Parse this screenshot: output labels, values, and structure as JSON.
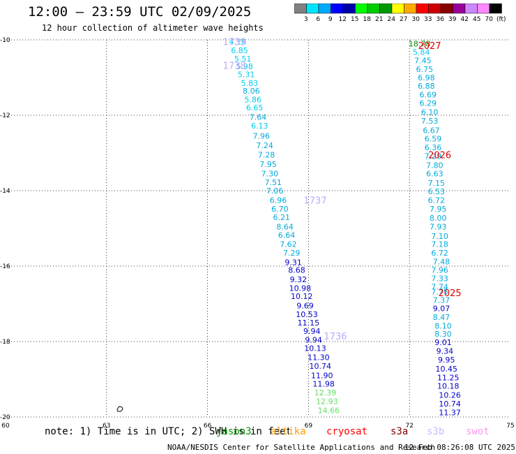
{
  "header": {
    "title": "12:00 – 23:59 UTC 02/09/2025",
    "subtitle": "12 hour collection of altimeter wave heights"
  },
  "colorbar": {
    "labels": [
      "3",
      "6",
      "9",
      "12",
      "15",
      "18",
      "21",
      "24",
      "27",
      "30",
      "33",
      "36",
      "39",
      "42",
      "45",
      "70",
      "(ft)"
    ],
    "colors": [
      "#808080",
      "#00e5ff",
      "#00aaff",
      "#0000ff",
      "#0000aa",
      "#00ff00",
      "#00cc00",
      "#009900",
      "#ffff00",
      "#ffaa00",
      "#ff0000",
      "#cc0000",
      "#880000",
      "#990099",
      "#cc88ff",
      "#ff88ff",
      "#000000"
    ]
  },
  "map": {
    "lon_ticks": [
      "60",
      "63",
      "66",
      "69",
      "72",
      "75"
    ],
    "lat_ticks": [
      "-10",
      "-12",
      "-14",
      "-16",
      "-18",
      "-20"
    ],
    "lon_range": [
      60,
      75
    ],
    "lat_range": [
      -10,
      -20
    ]
  },
  "labels": {
    "pass_ids": [
      {
        "text": "1739",
        "lon": 66.8,
        "lat": -10.05,
        "color": "#bbaaff"
      },
      {
        "text": "1738",
        "lon": 66.8,
        "lat": -10.68,
        "color": "#bbaaff"
      },
      {
        "text": "1737",
        "lon": 69.2,
        "lat": -14.25,
        "color": "#bbaaff"
      },
      {
        "text": "1736",
        "lon": 69.8,
        "lat": -17.85,
        "color": "#bbaaff"
      },
      {
        "text": "2027",
        "lon": 72.6,
        "lat": -10.15,
        "color": "#dd0000"
      },
      {
        "text": "2026",
        "lon": 72.9,
        "lat": -13.05,
        "color": "#dd0000"
      },
      {
        "text": "2025",
        "lon": 73.2,
        "lat": -16.7,
        "color": "#dd0000"
      }
    ]
  },
  "track_a": [
    {
      "v": "4.18",
      "lon": 66.9,
      "lat": -10.05,
      "c": "#00ccee"
    },
    {
      "v": "6.85",
      "lon": 66.95,
      "lat": -10.28,
      "c": "#00ccee"
    },
    {
      "v": "5.51",
      "lon": 67.05,
      "lat": -10.5,
      "c": "#00ccee"
    },
    {
      "v": "5.98",
      "lon": 67.1,
      "lat": -10.7,
      "c": "#00ccee"
    },
    {
      "v": "5.31",
      "lon": 67.15,
      "lat": -10.92,
      "c": "#00ccee"
    },
    {
      "v": "5.83",
      "lon": 67.25,
      "lat": -11.15,
      "c": "#00ccee"
    },
    {
      "v": "8.06",
      "lon": 67.3,
      "lat": -11.35,
      "c": "#00aadd"
    },
    {
      "v": "5.86",
      "lon": 67.35,
      "lat": -11.58,
      "c": "#00ccee"
    },
    {
      "v": "6.65",
      "lon": 67.4,
      "lat": -11.8,
      "c": "#00ccee"
    },
    {
      "v": "7.64",
      "lon": 67.5,
      "lat": -12.05,
      "c": "#00aadd"
    },
    {
      "v": "6.13",
      "lon": 67.55,
      "lat": -12.28,
      "c": "#00ccee"
    },
    {
      "v": "7.96",
      "lon": 67.6,
      "lat": -12.55,
      "c": "#00aadd"
    },
    {
      "v": "7.24",
      "lon": 67.7,
      "lat": -12.8,
      "c": "#00aadd"
    },
    {
      "v": "7.28",
      "lon": 67.75,
      "lat": -13.05,
      "c": "#00aadd"
    },
    {
      "v": "7.95",
      "lon": 67.8,
      "lat": -13.3,
      "c": "#00aadd"
    },
    {
      "v": "7.30",
      "lon": 67.85,
      "lat": -13.55,
      "c": "#00aadd"
    },
    {
      "v": "7.51",
      "lon": 67.95,
      "lat": -13.78,
      "c": "#00aadd"
    },
    {
      "v": "7.06",
      "lon": 68.0,
      "lat": -14.0,
      "c": "#00aadd"
    },
    {
      "v": "6.96",
      "lon": 68.1,
      "lat": -14.25,
      "c": "#00aadd"
    },
    {
      "v": "6.70",
      "lon": 68.15,
      "lat": -14.48,
      "c": "#00aadd"
    },
    {
      "v": "6.21",
      "lon": 68.2,
      "lat": -14.7,
      "c": "#00aadd"
    },
    {
      "v": "8.64",
      "lon": 68.3,
      "lat": -14.95,
      "c": "#00aadd"
    },
    {
      "v": "6.64",
      "lon": 68.35,
      "lat": -15.18,
      "c": "#00aadd"
    },
    {
      "v": "7.62",
      "lon": 68.4,
      "lat": -15.42,
      "c": "#00aadd"
    },
    {
      "v": "7.29",
      "lon": 68.5,
      "lat": -15.65,
      "c": "#00aadd"
    },
    {
      "v": "9.31",
      "lon": 68.55,
      "lat": -15.9,
      "c": "#0000cc"
    },
    {
      "v": "8.68",
      "lon": 68.65,
      "lat": -16.1,
      "c": "#0000cc"
    },
    {
      "v": "9.32",
      "lon": 68.7,
      "lat": -16.35,
      "c": "#0000cc"
    },
    {
      "v": "10.98",
      "lon": 68.75,
      "lat": -16.58,
      "c": "#0000cc"
    },
    {
      "v": "10.12",
      "lon": 68.8,
      "lat": -16.8,
      "c": "#0000cc"
    },
    {
      "v": "9.69",
      "lon": 68.9,
      "lat": -17.05,
      "c": "#0000cc"
    },
    {
      "v": "10.53",
      "lon": 68.95,
      "lat": -17.28,
      "c": "#0000cc"
    },
    {
      "v": "11.15",
      "lon": 69.0,
      "lat": -17.5,
      "c": "#0000cc"
    },
    {
      "v": "9.94",
      "lon": 69.1,
      "lat": -17.72,
      "c": "#0000cc"
    },
    {
      "v": "9.94",
      "lon": 69.15,
      "lat": -17.95,
      "c": "#0000cc"
    },
    {
      "v": "10.13",
      "lon": 69.2,
      "lat": -18.18,
      "c": "#0000cc"
    },
    {
      "v": "11.30",
      "lon": 69.3,
      "lat": -18.42,
      "c": "#0000cc"
    },
    {
      "v": "10.74",
      "lon": 69.35,
      "lat": -18.65,
      "c": "#0000cc"
    },
    {
      "v": "11.90",
      "lon": 69.4,
      "lat": -18.9,
      "c": "#0000cc"
    },
    {
      "v": "11.98",
      "lon": 69.45,
      "lat": -19.12,
      "c": "#0000cc"
    },
    {
      "v": "12.39",
      "lon": 69.5,
      "lat": -19.35,
      "c": "#66dd66"
    },
    {
      "v": "12.93",
      "lon": 69.55,
      "lat": -19.58,
      "c": "#66dd66"
    },
    {
      "v": "14.66",
      "lon": 69.6,
      "lat": -19.82,
      "c": "#66dd66"
    }
  ],
  "track_b": [
    {
      "v": "18.78",
      "lon": 72.3,
      "lat": -10.1,
      "c": "#008800"
    },
    {
      "v": "5.84",
      "lon": 72.35,
      "lat": -10.32,
      "c": "#00ccee"
    },
    {
      "v": "7.45",
      "lon": 72.4,
      "lat": -10.55,
      "c": "#00aadd"
    },
    {
      "v": "6.75",
      "lon": 72.45,
      "lat": -10.78,
      "c": "#00aadd"
    },
    {
      "v": "6.98",
      "lon": 72.5,
      "lat": -11.0,
      "c": "#00aadd"
    },
    {
      "v": "6.88",
      "lon": 72.5,
      "lat": -11.22,
      "c": "#00aadd"
    },
    {
      "v": "6.69",
      "lon": 72.55,
      "lat": -11.45,
      "c": "#00aadd"
    },
    {
      "v": "6.29",
      "lon": 72.55,
      "lat": -11.68,
      "c": "#00aadd"
    },
    {
      "v": "6.10",
      "lon": 72.6,
      "lat": -11.92,
      "c": "#00aadd"
    },
    {
      "v": "7.53",
      "lon": 72.6,
      "lat": -12.15,
      "c": "#00aadd"
    },
    {
      "v": "6.67",
      "lon": 72.65,
      "lat": -12.4,
      "c": "#00aadd"
    },
    {
      "v": "6.59",
      "lon": 72.7,
      "lat": -12.62,
      "c": "#00aadd"
    },
    {
      "v": "6.36",
      "lon": 72.7,
      "lat": -12.85,
      "c": "#00aadd"
    },
    {
      "v": "7.29",
      "lon": 72.7,
      "lat": -13.08,
      "c": "#00aadd"
    },
    {
      "v": "7.80",
      "lon": 72.75,
      "lat": -13.32,
      "c": "#00aadd"
    },
    {
      "v": "6.63",
      "lon": 72.75,
      "lat": -13.55,
      "c": "#00aadd"
    },
    {
      "v": "7.15",
      "lon": 72.8,
      "lat": -13.8,
      "c": "#00aadd"
    },
    {
      "v": "6.53",
      "lon": 72.8,
      "lat": -14.02,
      "c": "#00aadd"
    },
    {
      "v": "6.72",
      "lon": 72.8,
      "lat": -14.25,
      "c": "#00aadd"
    },
    {
      "v": "7.95",
      "lon": 72.85,
      "lat": -14.48,
      "c": "#00aadd"
    },
    {
      "v": "8.00",
      "lon": 72.85,
      "lat": -14.72,
      "c": "#00aadd"
    },
    {
      "v": "7.93",
      "lon": 72.85,
      "lat": -14.95,
      "c": "#00aadd"
    },
    {
      "v": "7.10",
      "lon": 72.9,
      "lat": -15.2,
      "c": "#00aadd"
    },
    {
      "v": "7.18",
      "lon": 72.9,
      "lat": -15.42,
      "c": "#00aadd"
    },
    {
      "v": "6.72",
      "lon": 72.9,
      "lat": -15.65,
      "c": "#00aadd"
    },
    {
      "v": "7.48",
      "lon": 72.95,
      "lat": -15.88,
      "c": "#00aadd"
    },
    {
      "v": "7.96",
      "lon": 72.9,
      "lat": -16.1,
      "c": "#00aadd"
    },
    {
      "v": "7.33",
      "lon": 72.9,
      "lat": -16.32,
      "c": "#00aadd"
    },
    {
      "v": "7.74",
      "lon": 72.9,
      "lat": -16.55,
      "c": "#00aadd"
    },
    {
      "v": "7.75",
      "lon": 72.9,
      "lat": -16.68,
      "c": "#00aadd"
    },
    {
      "v": "7.37",
      "lon": 72.95,
      "lat": -16.9,
      "c": "#00aadd"
    },
    {
      "v": "9.07",
      "lon": 72.95,
      "lat": -17.12,
      "c": "#0000cc"
    },
    {
      "v": "8.47",
      "lon": 72.95,
      "lat": -17.35,
      "c": "#00aadd"
    },
    {
      "v": "8.10",
      "lon": 73.0,
      "lat": -17.58,
      "c": "#00aadd"
    },
    {
      "v": "8.30",
      "lon": 73.0,
      "lat": -17.8,
      "c": "#00aadd"
    },
    {
      "v": "9.01",
      "lon": 73.0,
      "lat": -18.02,
      "c": "#0000cc"
    },
    {
      "v": "9.34",
      "lon": 73.05,
      "lat": -18.25,
      "c": "#0000cc"
    },
    {
      "v": "9.95",
      "lon": 73.1,
      "lat": -18.48,
      "c": "#0000cc"
    },
    {
      "v": "10.45",
      "lon": 73.1,
      "lat": -18.72,
      "c": "#0000cc"
    },
    {
      "v": "11.25",
      "lon": 73.15,
      "lat": -18.95,
      "c": "#0000cc"
    },
    {
      "v": "10.18",
      "lon": 73.15,
      "lat": -19.18,
      "c": "#0000cc"
    },
    {
      "v": "10.26",
      "lon": 73.2,
      "lat": -19.42,
      "c": "#0000cc"
    },
    {
      "v": "10.74",
      "lon": 73.2,
      "lat": -19.65,
      "c": "#0000cc"
    },
    {
      "v": "11.37",
      "lon": 73.2,
      "lat": -19.88,
      "c": "#0000cc"
    }
  ],
  "footer": {
    "note": "note: 1) Time is in UTC; 2) SWH is in feet",
    "satellites": [
      {
        "name": "jason3",
        "color": "#009900"
      },
      {
        "name": "altika",
        "color": "#ff9900"
      },
      {
        "name": "cryosat",
        "color": "#ff0000"
      },
      {
        "name": "s3a",
        "color": "#880000"
      },
      {
        "name": "s3b",
        "color": "#ccbbff"
      },
      {
        "name": "swot",
        "color": "#ff99ee"
      }
    ],
    "credit": "NOAA/NESDIS Center for Satellite Applications and Research",
    "timestamp": "12 Feb 08:26:08 UTC 2025"
  }
}
